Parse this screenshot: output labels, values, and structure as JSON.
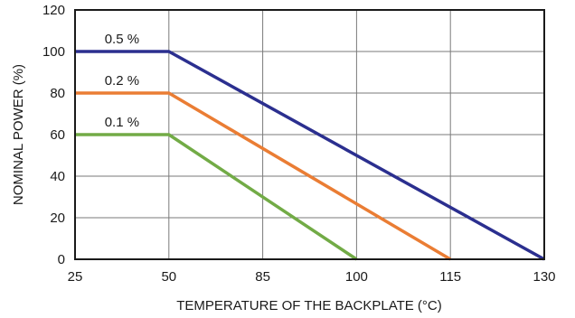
{
  "chart_data": {
    "type": "line",
    "title": "",
    "xlabel": "TEMPERATURE OF THE BACKPLATE (°C)",
    "ylabel": "NOMINAL POWER (%)",
    "x_ticks": [
      "25",
      "50",
      "85",
      "100",
      "115",
      "130"
    ],
    "y_ticks": [
      "0",
      "20",
      "40",
      "60",
      "80",
      "100",
      "120"
    ],
    "ylim": [
      0,
      120
    ],
    "grid": true,
    "legend": "none",
    "series": [
      {
        "name": "0.5 %",
        "color": "#2b2f8f",
        "points": [
          [
            25,
            100
          ],
          [
            50,
            100
          ],
          [
            130,
            0
          ]
        ]
      },
      {
        "name": "0.2 %",
        "color": "#ea7d34",
        "points": [
          [
            25,
            80
          ],
          [
            50,
            80
          ],
          [
            115,
            0
          ]
        ]
      },
      {
        "name": "0.1 %",
        "color": "#72ab46",
        "points": [
          [
            25,
            60
          ],
          [
            50,
            60
          ],
          [
            100,
            0
          ]
        ]
      }
    ]
  }
}
